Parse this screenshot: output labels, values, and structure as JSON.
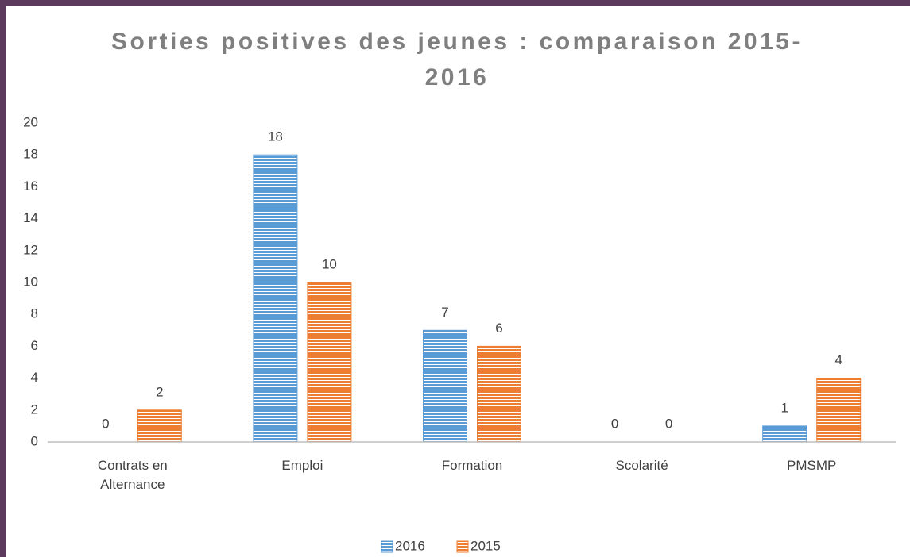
{
  "chart_data": {
    "type": "bar",
    "title": "Sorties positives des jeunes : comparaison 2015-2016",
    "categories": [
      "Contrats en Alternance",
      "Emploi",
      "Formation",
      "Scolarité",
      "PMSMP"
    ],
    "series": [
      {
        "name": "2016",
        "color": "#5b9bd5",
        "values": [
          0,
          18,
          7,
          0,
          1
        ]
      },
      {
        "name": "2015",
        "color": "#ed7d31",
        "values": [
          2,
          10,
          6,
          0,
          4
        ]
      }
    ],
    "ylim": [
      0,
      20
    ],
    "yticks": [
      0,
      2,
      4,
      6,
      8,
      10,
      12,
      14,
      16,
      18,
      20
    ],
    "grid": false,
    "legend": "bottom"
  }
}
